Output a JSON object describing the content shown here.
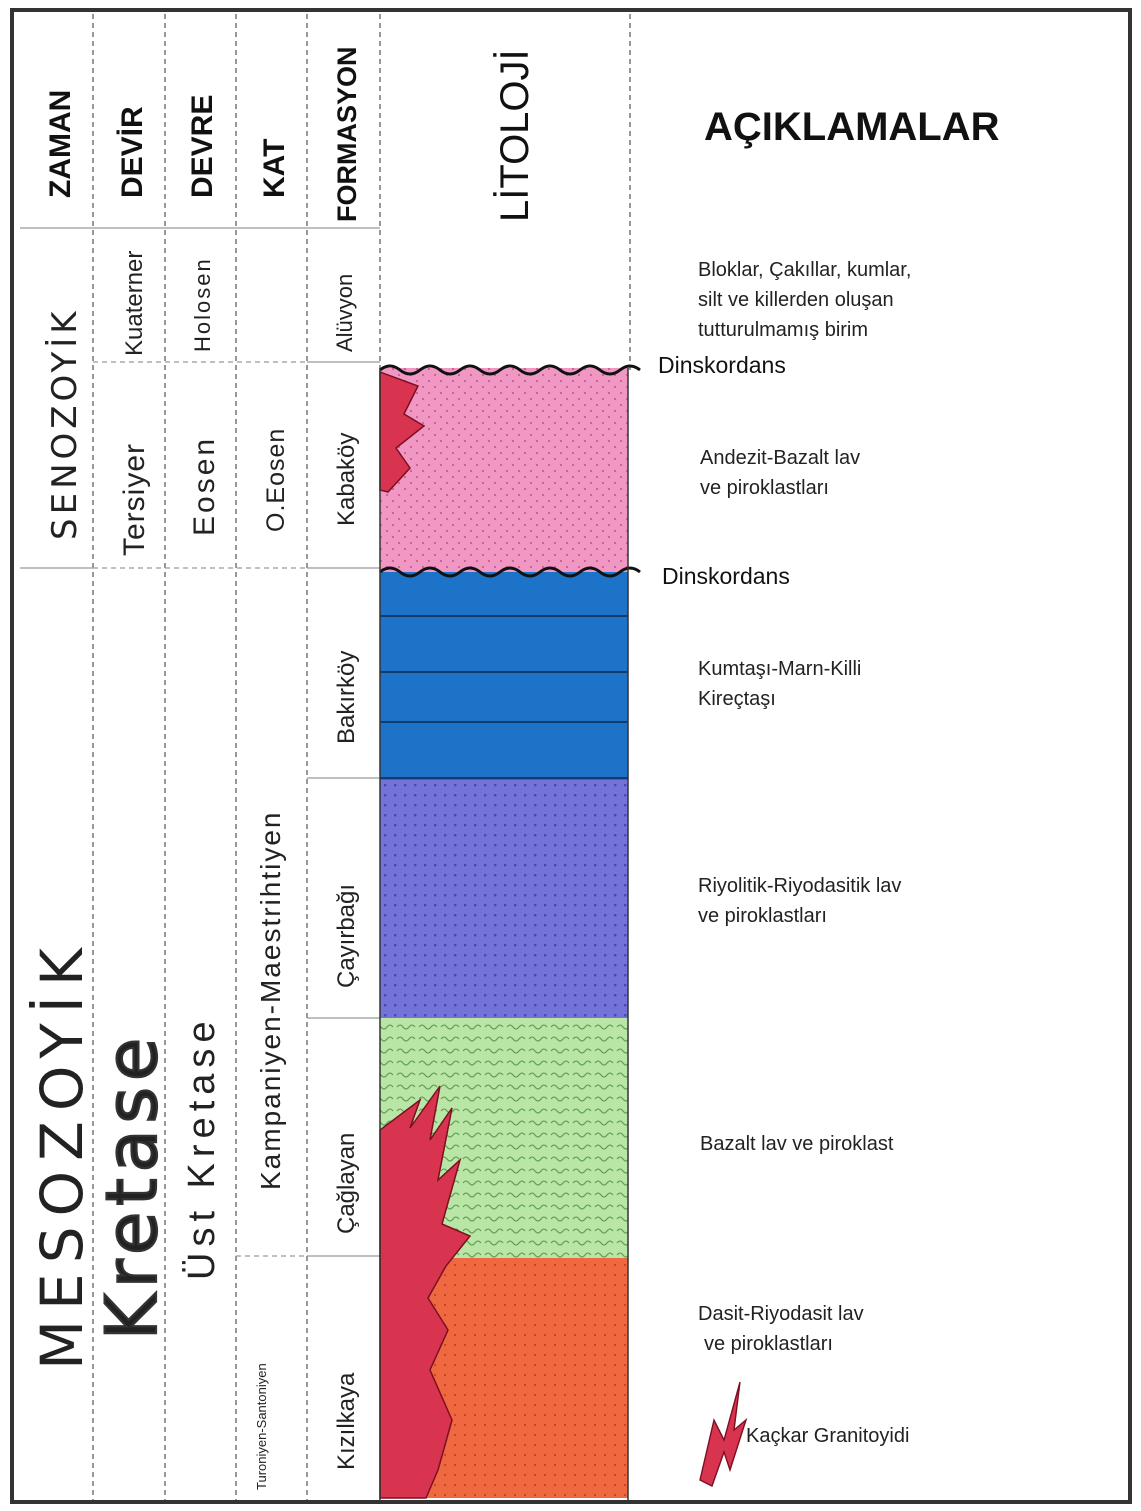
{
  "headers": {
    "zaman": "ZAMAN",
    "devir": "DEVİR",
    "devre": "DEVRE",
    "kat": "KAT",
    "formasyon": "FORMASYON",
    "litoloji": "LİTOLOJİ",
    "aciklamalar": "AÇIKLAMALAR"
  },
  "zaman": {
    "senozoyik": "SENOZOYİK",
    "mesozoyik": "MESOZOYİK"
  },
  "devir": {
    "kuaterner": "Kuaterner",
    "tersiyer": "Tersiyer",
    "kretase": "Kretase"
  },
  "devre": {
    "holosen": "Holosen",
    "eosen": "Eosen",
    "ust_kretase": "Üst Kretase"
  },
  "kat": {
    "o_eosen": "O.Eosen",
    "kampaniyen": "Kampaniyen-Maestrihtiyen",
    "turoniyen": "Turoniyen-Santoniyen"
  },
  "formasyon": {
    "aluvyon": "Alüvyon",
    "kabakoy": "Kabaköy",
    "bakirkoy": "Bakırköy",
    "cayirbagi": "Çayırbağı",
    "caglayan": "Çağlayan",
    "kizilkaya": "Kızılkaya"
  },
  "unconformity": {
    "top": "Dinskordans",
    "bottom": "Dinskordans"
  },
  "descriptions": {
    "aluvyon": [
      "Bloklar, Çakıllar, kumlar,",
      "silt ve killerden oluşan",
      "tutturulmamış birim"
    ],
    "kabakoy": [
      "Andezit-Bazalt lav",
      "ve piroklastları"
    ],
    "bakirkoy": [
      "Kumtaşı-Marn-Killi",
      "Kireçtaşı"
    ],
    "cayirbagi": [
      "Riyolitik-Riyodasitik lav",
      "ve piroklastları"
    ],
    "caglayan": [
      "Bazalt lav ve piroklast"
    ],
    "kizilkaya": [
      "Dasit-Riyodasit lav",
      "ve piroklastları"
    ],
    "granitoid": "Kaçkar Granitoyidi"
  },
  "colors": {
    "kabakoy": "#f197c4",
    "bakirkoy": "#1c73c8",
    "cayirbagi": "#7373d9",
    "caglayan": "#b9e6a6",
    "kizilkaya": "#ef6840",
    "granitoid": "#d8334f"
  },
  "icons": {
    "granitoid_legend": "intrusion-symbol-icon"
  }
}
